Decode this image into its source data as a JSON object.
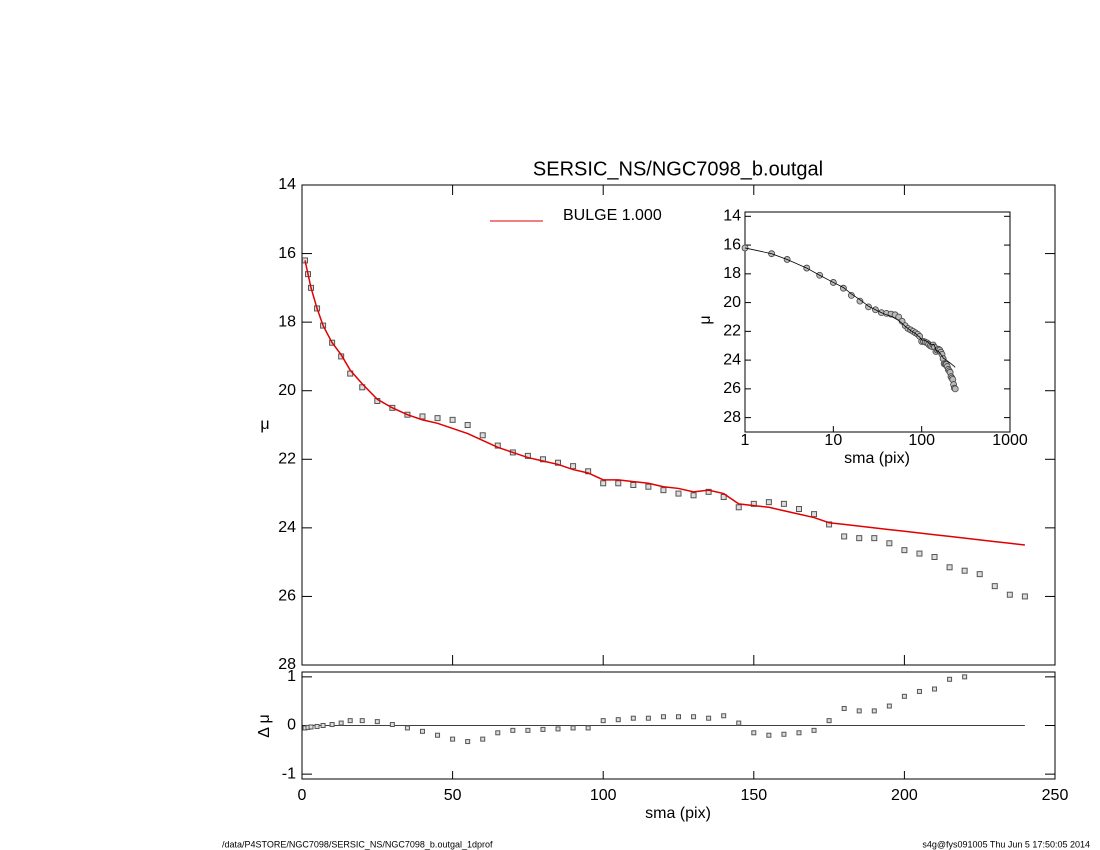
{
  "chart_data": [
    {
      "type": "line",
      "title": "SERSIC_NS/NGC7098_b.outgal",
      "ylabel": "μ",
      "x": [
        1,
        2,
        3,
        5,
        7,
        10,
        13,
        16,
        20,
        25,
        30,
        35,
        40,
        45,
        50,
        55,
        60,
        65,
        70,
        75,
        80,
        85,
        90,
        95,
        100,
        105,
        110,
        115,
        120,
        125,
        130,
        135,
        140,
        145,
        150,
        155,
        160,
        165,
        170,
        175,
        180,
        185,
        190,
        195,
        200,
        205,
        210,
        215,
        220,
        225,
        230,
        235,
        240
      ],
      "series": [
        {
          "color": "#555555",
          "marker": "square",
          "values": [
            16.2,
            16.6,
            17.0,
            17.6,
            18.1,
            18.6,
            19.0,
            19.5,
            19.9,
            20.3,
            20.5,
            20.7,
            20.75,
            20.8,
            20.85,
            21.0,
            21.3,
            21.6,
            21.8,
            21.9,
            22.0,
            22.1,
            22.2,
            22.35,
            22.7,
            22.7,
            22.75,
            22.8,
            22.9,
            23.0,
            23.05,
            22.95,
            23.1,
            23.4,
            23.3,
            23.25,
            23.3,
            23.45,
            23.6,
            23.9,
            24.25,
            24.3,
            24.3,
            24.45,
            24.65,
            24.75,
            24.85,
            25.15,
            25.25,
            25.35,
            25.7,
            25.95,
            26.0
          ]
        },
        {
          "name": "BULGE  1.000",
          "color": "#e00000",
          "values": [
            16.2,
            16.6,
            17.0,
            17.6,
            18.1,
            18.6,
            18.95,
            19.4,
            19.8,
            20.25,
            20.5,
            20.7,
            20.85,
            20.95,
            21.1,
            21.25,
            21.45,
            21.65,
            21.8,
            21.95,
            22.05,
            22.15,
            22.3,
            22.4,
            22.6,
            22.6,
            22.65,
            22.7,
            22.8,
            22.85,
            22.95,
            22.9,
            23.0,
            23.3,
            23.35,
            23.4,
            23.5,
            23.6,
            23.7,
            23.85,
            23.9,
            23.95,
            24.0,
            24.05,
            24.1,
            24.15,
            24.2,
            24.25,
            24.3,
            24.35,
            24.4,
            24.45,
            24.5
          ]
        }
      ],
      "ylim": [
        14,
        28
      ],
      "yticks": [
        14,
        16,
        18,
        20,
        22,
        24,
        26,
        28
      ],
      "y_reversed": true
    },
    {
      "type": "scatter",
      "ylabel": "Δ μ",
      "xlabel": "sma (pix)",
      "xlim": [
        0,
        250
      ],
      "xticks": [
        0,
        50,
        100,
        150,
        200,
        250
      ],
      "ylim": [
        -1.1,
        1.1
      ],
      "yticks": [
        -1,
        0,
        1
      ],
      "color": "#555555",
      "values": [
        -0.05,
        -0.04,
        -0.03,
        -0.02,
        0,
        0.02,
        0.05,
        0.1,
        0.1,
        0.08,
        0.02,
        -0.05,
        -0.12,
        -0.2,
        -0.28,
        -0.33,
        -0.28,
        -0.15,
        -0.1,
        -0.1,
        -0.08,
        -0.07,
        -0.05,
        -0.05,
        0.1,
        0.12,
        0.15,
        0.15,
        0.18,
        0.18,
        0.18,
        0.15,
        0.2,
        0.05,
        -0.15,
        -0.2,
        -0.18,
        -0.15,
        -0.1,
        0.1,
        0.35,
        0.3,
        0.3,
        0.4,
        0.6,
        0.7,
        0.75,
        0.95,
        1.0,
        null,
        null,
        null,
        null
      ]
    },
    {
      "type": "inset",
      "xlabel": "sma (pix)",
      "ylabel": "μ",
      "log_x": true,
      "xlim": [
        1,
        1000
      ],
      "xticks": [
        1,
        10,
        100,
        1000
      ],
      "ylim": [
        13.7,
        29
      ],
      "yticks": [
        14,
        16,
        18,
        20,
        22,
        24,
        26,
        28
      ],
      "y_reversed": true
    }
  ],
  "footer": {
    "left": "/data/P4STORE/NGC7098/SERSIC_NS/NGC7098_b.outgal_1dprof",
    "right": "s4g@fys091005  Thu Jun  5 17:50:05 2014"
  }
}
